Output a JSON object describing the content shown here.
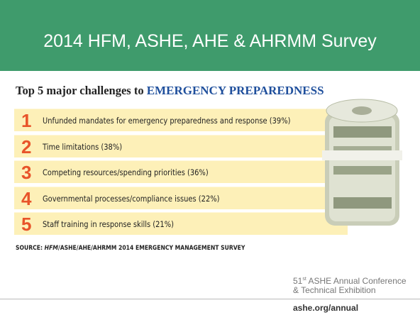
{
  "header": {
    "title": "2014 HFM, ASHE, AHE & AHRMM Survey"
  },
  "infographic": {
    "heading": {
      "lead": "Top 5 major challenges to ",
      "emphasis": "EMERGENCY PREPAREDNESS"
    },
    "items": [
      {
        "rank": 1,
        "text": "Unfunded mandates for emergency preparedness and response (39%)"
      },
      {
        "rank": 2,
        "text": "Time limitations (38%)"
      },
      {
        "rank": 3,
        "text": "Competing resources/spending priorities (36%)"
      },
      {
        "rank": 4,
        "text": "Governmental processes/compliance issues (22%)"
      },
      {
        "rank": 5,
        "text": "Staff training in response skills (21%)"
      }
    ],
    "source": {
      "lead": "SOURCE: ",
      "italic": "HFM",
      "rest": "/ASHE/AHE/AHRMM 2014 EMERGENCY MANAGEMENT SURVEY"
    }
  },
  "footer": {
    "number": "51",
    "suffix": "st",
    "line1": " ASHE Annual Conference",
    "line2": "& Technical Exhibition",
    "url": "ashe.org/annual"
  }
}
